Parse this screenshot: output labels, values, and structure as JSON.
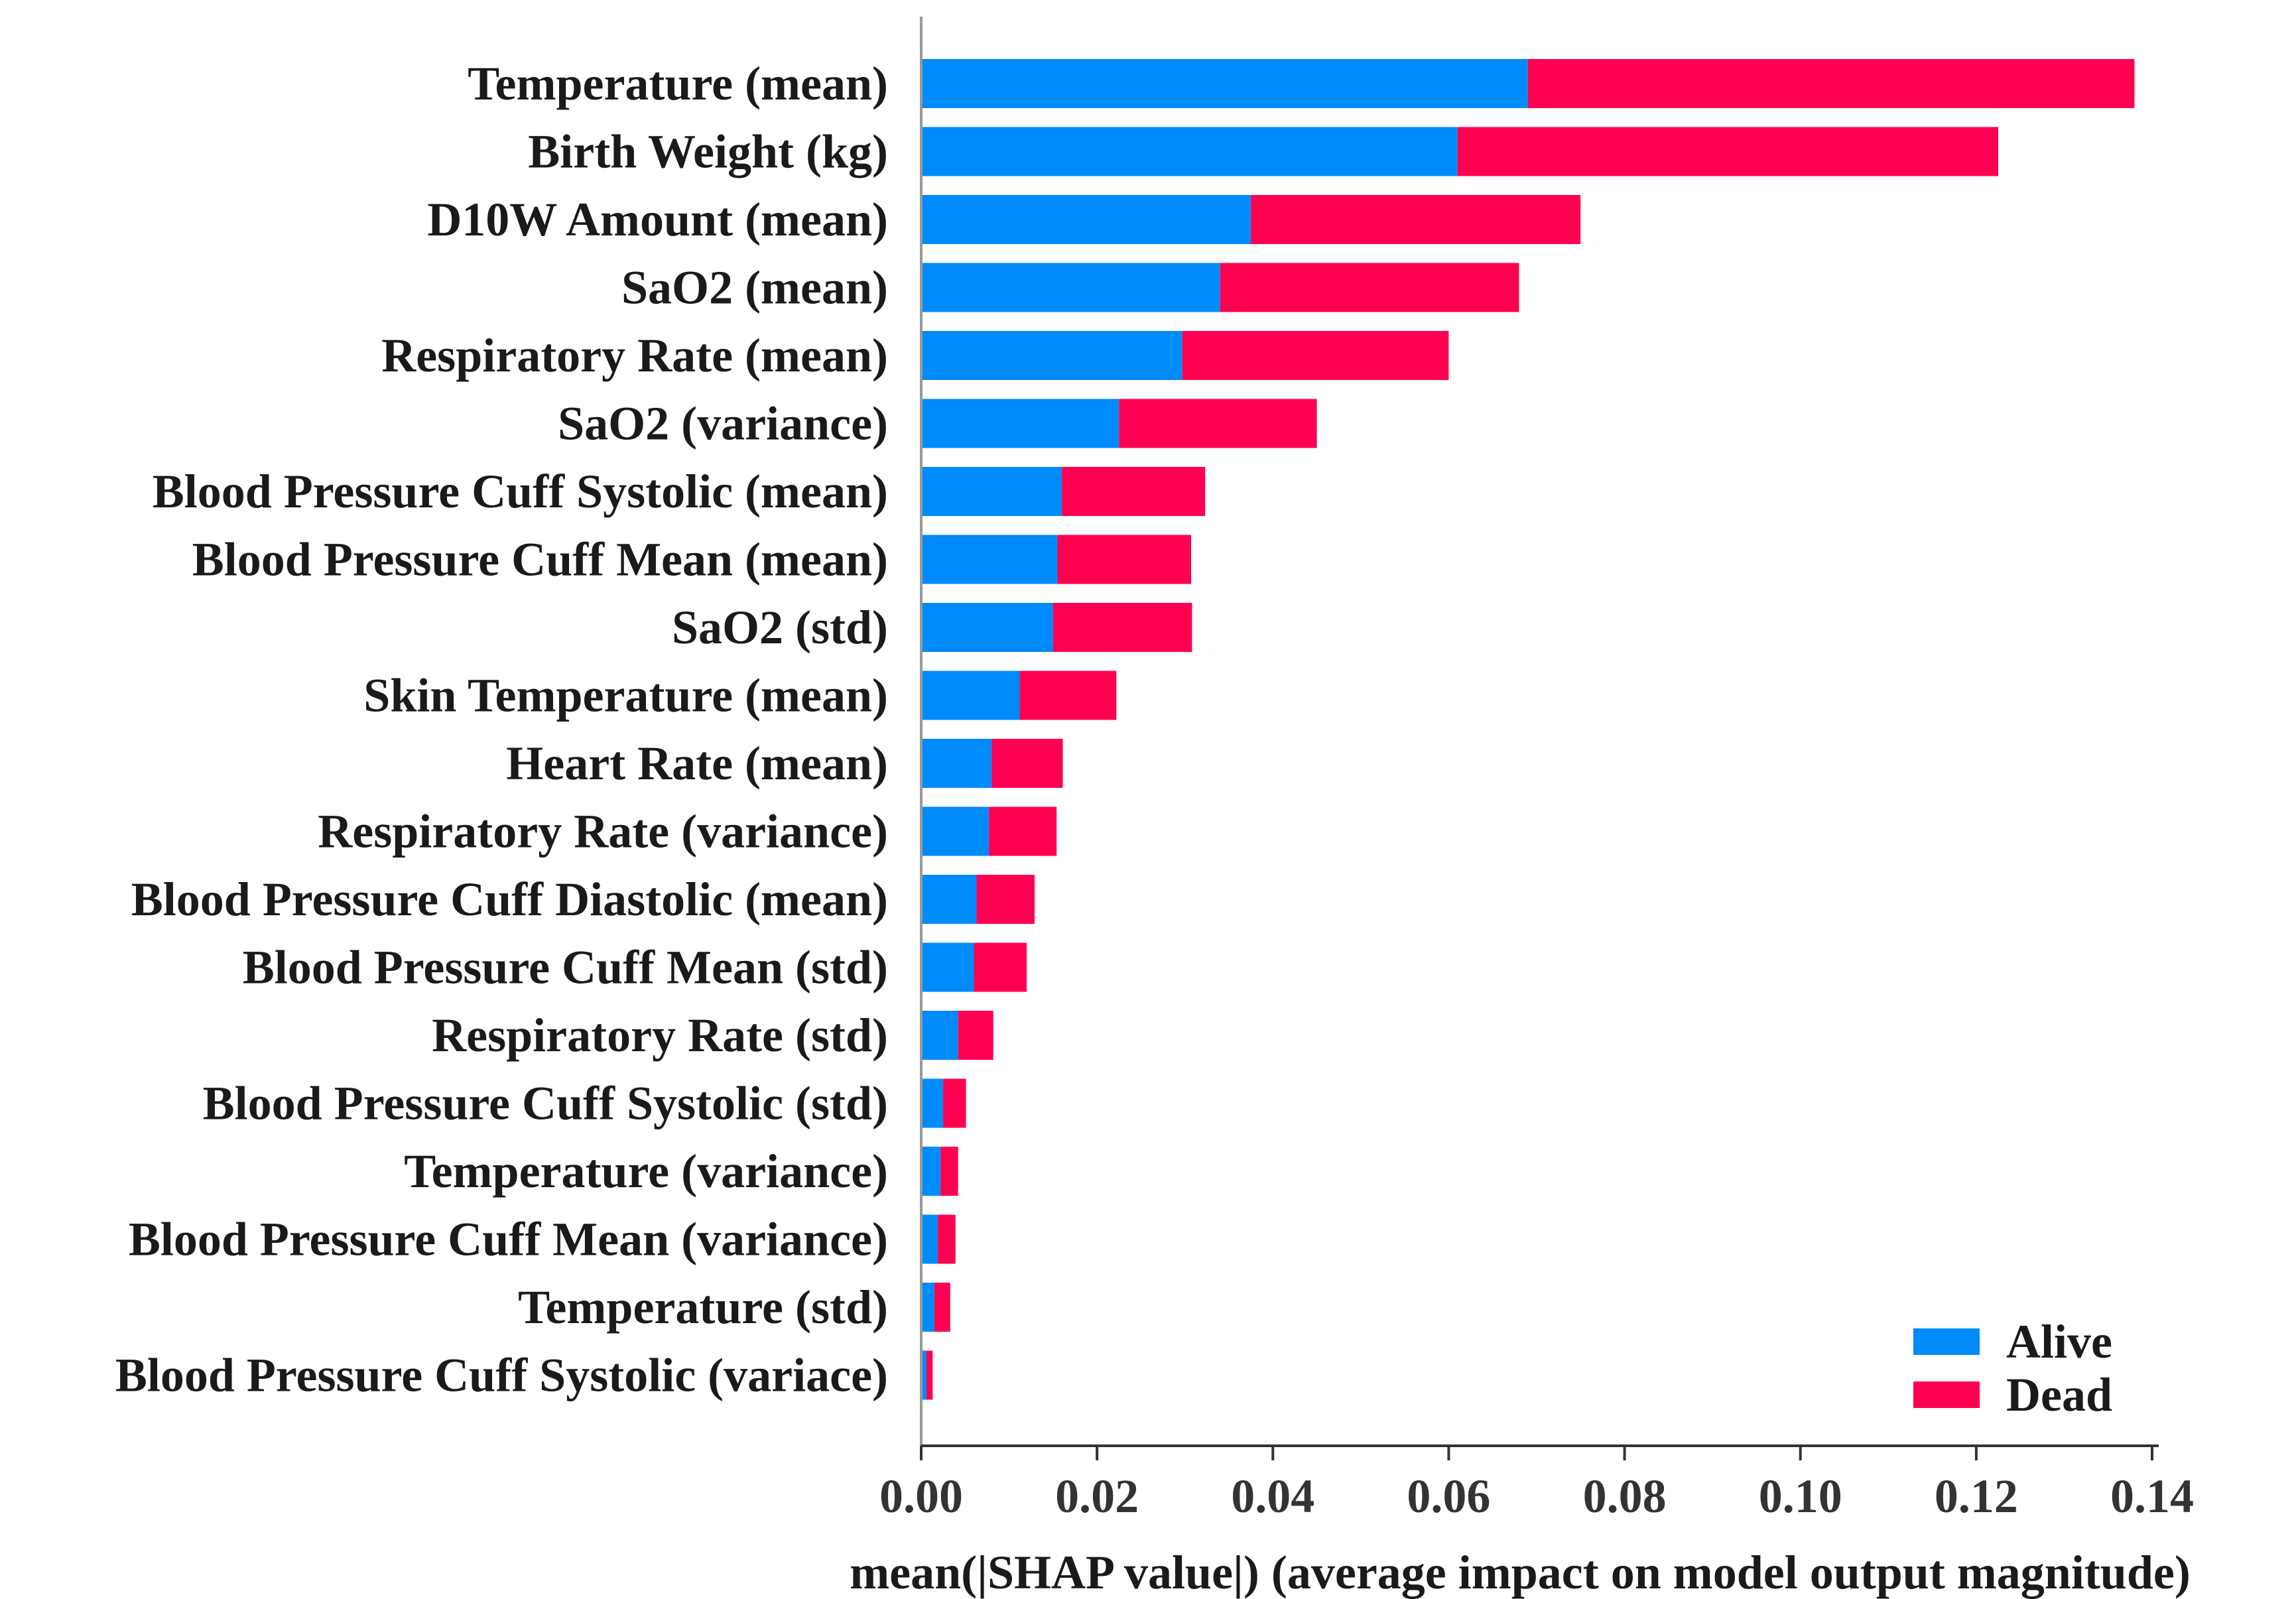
{
  "chart_data": {
    "type": "bar",
    "orientation": "horizontal",
    "stacked": true,
    "categories": [
      "Temperature (mean)",
      "Birth Weight (kg)",
      "D10W Amount (mean)",
      "SaO2 (mean)",
      "Respiratory Rate (mean)",
      "SaO2 (variance)",
      "Blood Pressure Cuff Systolic (mean)",
      "Blood Pressure Cuff Mean (mean)",
      "SaO2 (std)",
      "Skin Temperature (mean)",
      "Heart Rate (mean)",
      "Respiratory Rate (variance)",
      "Blood Pressure Cuff Diastolic (mean)",
      "Blood Pressure Cuff Mean (std)",
      "Respiratory Rate (std)",
      "Blood Pressure Cuff Systolic (std)",
      "Temperature (variance)",
      "Blood Pressure Cuff Mean (variance)",
      "Temperature (std)",
      "Blood Pressure Cuff Systolic (variace)"
    ],
    "series": [
      {
        "name": "Alive",
        "color": "#008bfb",
        "values": [
          0.069,
          0.061,
          0.0375,
          0.034,
          0.0297,
          0.0225,
          0.016,
          0.0155,
          0.015,
          0.0112,
          0.008,
          0.0077,
          0.0063,
          0.006,
          0.0042,
          0.0025,
          0.0022,
          0.0019,
          0.0015,
          0.0006
        ]
      },
      {
        "name": "Dead",
        "color": "#ff0051",
        "values": [
          0.069,
          0.0615,
          0.0375,
          0.034,
          0.0303,
          0.0225,
          0.0163,
          0.0152,
          0.0158,
          0.011,
          0.0081,
          0.0077,
          0.0066,
          0.006,
          0.004,
          0.0026,
          0.002,
          0.002,
          0.0018,
          0.0007
        ]
      }
    ],
    "xlabel": "mean(|SHAP value|) (average impact on model output magnitude)",
    "ylabel": "",
    "title": "",
    "xlim": [
      0,
      0.145
    ],
    "xticks": [
      "0.00",
      "0.02",
      "0.04",
      "0.06",
      "0.08",
      "0.10",
      "0.12",
      "0.14"
    ],
    "xtick_values": [
      0,
      0.02,
      0.04,
      0.06,
      0.08,
      0.1,
      0.12,
      0.14
    ],
    "legend": {
      "position": "bottom-right",
      "entries": [
        "Alive",
        "Dead"
      ]
    },
    "grid": false
  }
}
